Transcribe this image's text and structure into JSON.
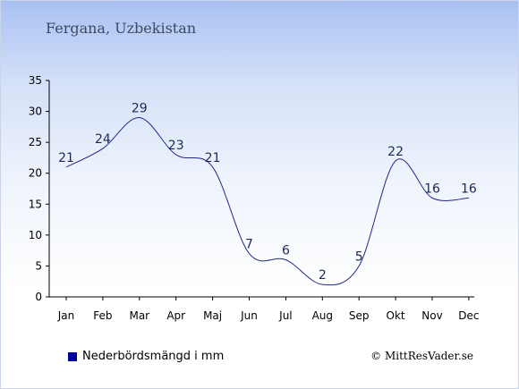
{
  "header": {
    "title": "Fergana, Uzbekistan"
  },
  "legend": {
    "label": "Nederbördsmängd i mm"
  },
  "footer": {
    "copyright": "© MittResVader.se"
  },
  "colors": {
    "series": "#1f2a8a",
    "legend_swatch": "#00009e",
    "axis": "#000000",
    "label": "#1a2a55"
  },
  "chart_data": {
    "type": "line",
    "categories": [
      "Jan",
      "Feb",
      "Mar",
      "Apr",
      "Maj",
      "Jun",
      "Jul",
      "Aug",
      "Sep",
      "Okt",
      "Nov",
      "Dec"
    ],
    "series": [
      {
        "name": "Nederbördsmängd i mm",
        "values": [
          21,
          24,
          29,
          23,
          21,
          7,
          6,
          2,
          5,
          22,
          16,
          16
        ]
      }
    ],
    "yticks": [
      0,
      5,
      10,
      15,
      20,
      25,
      30,
      35
    ],
    "ylim": [
      0,
      35
    ],
    "grid": false,
    "legend_position": "bottom-left"
  }
}
